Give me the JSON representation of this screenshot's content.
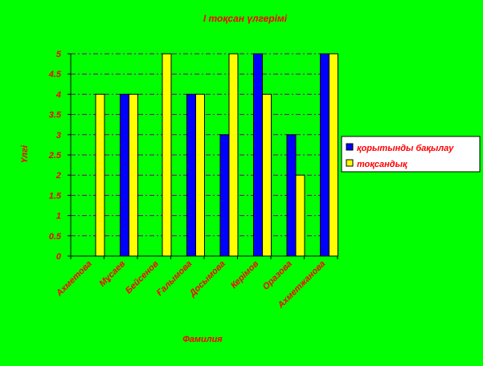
{
  "chart_data": {
    "type": "bar",
    "title": "І тоқсан үлгерімі",
    "xlabel": "Фамилия",
    "ylabel": "Үлгі",
    "ylim": [
      0,
      5
    ],
    "y_ticks": [
      "0",
      "0.5",
      "1",
      "1.5",
      "2",
      "2.5",
      "3",
      "3.5",
      "4",
      "4.5",
      "5"
    ],
    "grid": true,
    "legend_position": "right",
    "categories": [
      "Ахметова",
      "Мұсаев",
      "Бейсенов",
      "Ғалымова",
      "Досымова",
      "Керімов",
      "Оразова",
      "Ахметжанова"
    ],
    "series": [
      {
        "name": "қорытынды бақылау",
        "color": "#0000ff",
        "values": [
          null,
          4,
          null,
          4,
          3,
          5,
          3,
          5
        ]
      },
      {
        "name": "тоқсандық",
        "color": "#ffff00",
        "values": [
          4,
          4,
          5,
          4,
          5,
          4,
          2,
          5
        ]
      }
    ],
    "colors": {
      "background": "#00ff00",
      "text": "#ff0000",
      "axis": "#000000",
      "grid": "#800080"
    }
  }
}
